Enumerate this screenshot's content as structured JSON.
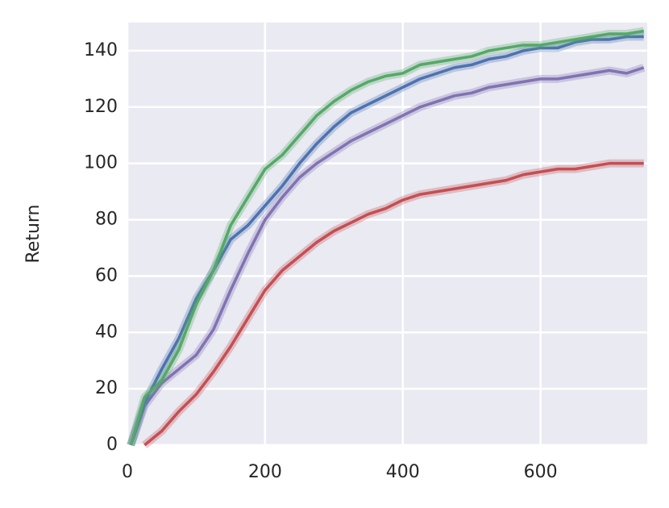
{
  "chart_data": {
    "type": "line",
    "y_label": "Return",
    "x": [
      5,
      25,
      50,
      75,
      100,
      125,
      150,
      175,
      200,
      225,
      250,
      275,
      300,
      325,
      350,
      375,
      400,
      425,
      450,
      475,
      500,
      525,
      550,
      575,
      600,
      625,
      650,
      675,
      700,
      725,
      750
    ],
    "series": [
      {
        "color": "#c44e52",
        "values": [
          null,
          0,
          5,
          12,
          18,
          26,
          35,
          45,
          55,
          62,
          67,
          72,
          76,
          79,
          82,
          84,
          87,
          89,
          90,
          91,
          92,
          93,
          94,
          96,
          97,
          98,
          98,
          99,
          100,
          100,
          100
        ]
      },
      {
        "color": "#8172b2",
        "values": [
          0,
          14,
          22,
          27,
          32,
          41,
          55,
          68,
          80,
          88,
          95,
          100,
          104,
          108,
          111,
          114,
          117,
          120,
          122,
          124,
          125,
          127,
          128,
          129,
          130,
          130,
          131,
          132,
          133,
          132,
          134
        ]
      },
      {
        "color": "#4c72b0",
        "values": [
          0,
          15,
          27,
          38,
          52,
          62,
          73,
          78,
          85,
          92,
          100,
          107,
          113,
          118,
          121,
          124,
          127,
          130,
          132,
          134,
          135,
          137,
          138,
          140,
          141,
          141,
          143,
          144,
          144,
          145,
          145
        ]
      },
      {
        "color": "#55a868",
        "values": [
          0,
          17,
          23,
          34,
          50,
          62,
          78,
          88,
          98,
          103,
          110,
          117,
          122,
          126,
          129,
          131,
          132,
          135,
          136,
          137,
          138,
          140,
          141,
          142,
          142,
          143,
          144,
          145,
          146,
          146,
          147
        ]
      }
    ],
    "xlim": [
      0,
      755
    ],
    "xticks": [
      0,
      200,
      400,
      600
    ],
    "ylim": [
      0,
      150
    ],
    "yticks": [
      0,
      20,
      40,
      60,
      80,
      100,
      120,
      140
    ],
    "grid": true,
    "background": "#eaeaf2"
  }
}
